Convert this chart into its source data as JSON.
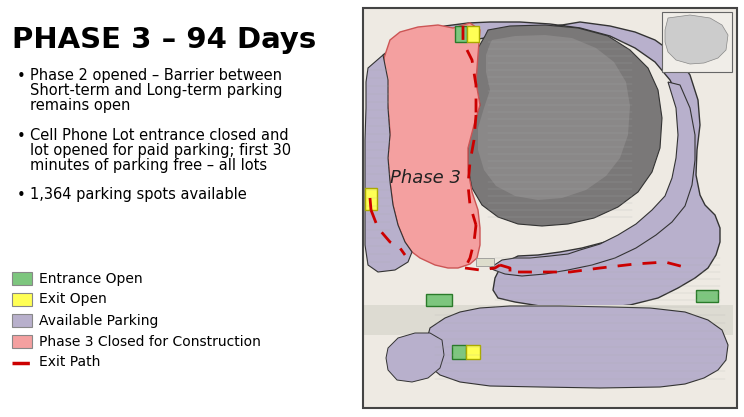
{
  "title": "PHASE 3 – 94 Days",
  "bullet1_line1": "Phase 2 opened – Barrier between",
  "bullet1_line2": "Short-term and Long-term parking",
  "bullet1_line3": "remains open",
  "bullet2_line1": "Cell Phone Lot entrance closed and",
  "bullet2_line2": "lot opened for paid parking; first 30",
  "bullet2_line3": "minutes of parking free – all lots",
  "bullet3": "1,364 parking spots available",
  "legend": [
    {
      "color": "#7dc67e",
      "label": "Entrance Open"
    },
    {
      "color": "#ffff55",
      "label": "Exit Open"
    },
    {
      "color": "#b8b0cc",
      "label": "Available Parking"
    },
    {
      "color": "#f4a0a0",
      "label": "Phase 3 Closed for Construction"
    },
    {
      "color": "#cc0000",
      "label": "Exit Path",
      "linestyle": "dashed"
    }
  ],
  "bg_color": "#ffffff",
  "title_fontsize": 21,
  "body_fontsize": 10.5,
  "legend_fontsize": 10,
  "map_bg": "#f0ede8",
  "parking_lavender": "#b8b0cc",
  "terminal_dark": "#888080",
  "terminal_mid": "#9c9898",
  "phase3_color": "#f4a0a0",
  "green_color": "#7dc67e",
  "yellow_color": "#ffff55",
  "red_path": "#cc0000"
}
